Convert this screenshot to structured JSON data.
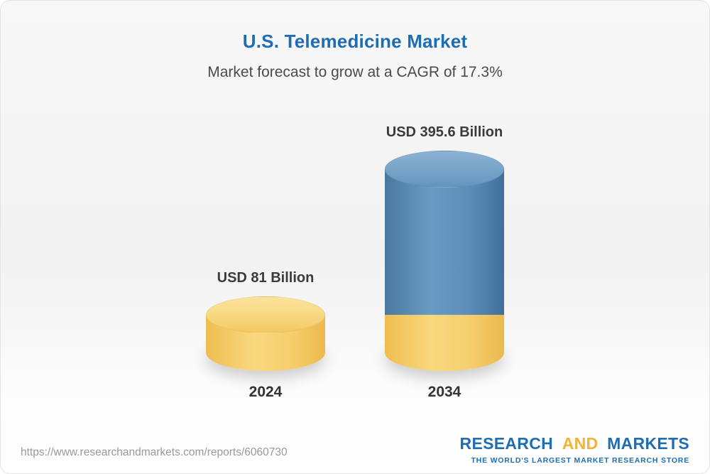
{
  "page": {
    "title": "U.S. Telemedicine Market",
    "subtitle": "Market forecast to grow at a CAGR of 17.3%"
  },
  "chart_data": {
    "type": "bar",
    "title": "U.S. Telemedicine Market",
    "subtitle": "Market forecast to grow at a CAGR of 17.3%",
    "categories": [
      "2024",
      "2034"
    ],
    "values": [
      81,
      395.6
    ],
    "unit": "USD Billion",
    "value_labels": [
      "USD 81 Billion",
      "USD 395.6 Billion"
    ],
    "cagr_percent": 17.3,
    "legend_position": "none",
    "grid": false,
    "colors": {
      "bar_2024": "#F6CF6D",
      "bar_2034": "#5D8EB9",
      "bar_2034_base_band": "#F6CF6D"
    }
  },
  "footer": {
    "url": "https://www.researchandmarkets.com/reports/6060730",
    "logo": {
      "research": "RESEARCH",
      "and": "AND",
      "markets": "MARKETS",
      "tagline": "THE WORLD'S LARGEST MARKET RESEARCH STORE"
    }
  }
}
